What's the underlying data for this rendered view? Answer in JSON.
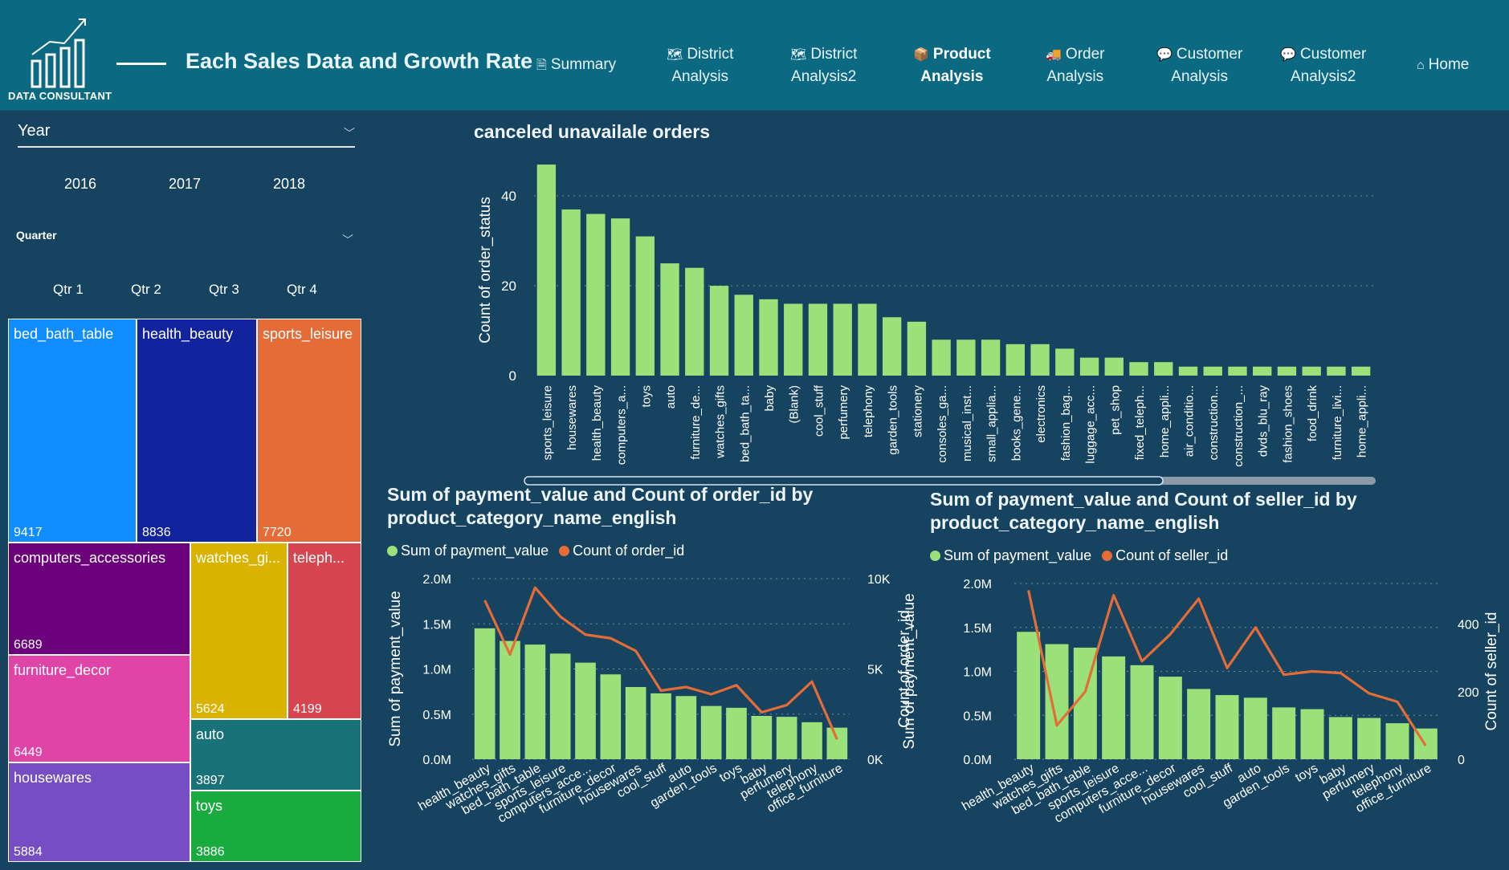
{
  "header": {
    "logo_label": "DATA CONSULTANT",
    "title": "Each Sales Data and Growth Rate",
    "nav": [
      {
        "line1": "Summary",
        "line2": "",
        "icon": "document-icon",
        "active": false
      },
      {
        "line1": "District",
        "line2": "Analysis",
        "icon": "map-icon",
        "active": false
      },
      {
        "line1": "District",
        "line2": "Analysis2",
        "icon": "map-icon",
        "active": false
      },
      {
        "line1": "Product",
        "line2": "Analysis",
        "icon": "box-icon",
        "active": true
      },
      {
        "line1": "Order",
        "line2": "Analysis",
        "icon": "truck-icon",
        "active": false
      },
      {
        "line1": "Customer",
        "line2": "Analysis",
        "icon": "chat-icon",
        "active": false
      },
      {
        "line1": "Customer",
        "line2": "Analysis2",
        "icon": "chat-icon",
        "active": false
      },
      {
        "line1": "Home",
        "line2": "",
        "icon": "home-icon",
        "active": false
      }
    ]
  },
  "slicers": {
    "year": {
      "label": "Year",
      "options": [
        "2016",
        "2017",
        "2018"
      ]
    },
    "quarter": {
      "label": "Quarter",
      "options": [
        "Qtr 1",
        "Qtr 2",
        "Qtr 3",
        "Qtr 4"
      ]
    }
  },
  "treemap": {
    "tiles": [
      {
        "label": "bed_bath_table",
        "value": 9417,
        "color": "#118dff"
      },
      {
        "label": "health_beauty",
        "value": 8836,
        "color": "#12239e"
      },
      {
        "label": "sports_leisure",
        "value": 7720,
        "color": "#e66c37"
      },
      {
        "label": "computers_accessories",
        "value": 6689,
        "color": "#6b007b"
      },
      {
        "label": "watches_gi...",
        "value": 5624,
        "color": "#d9b300"
      },
      {
        "label": "teleph...",
        "value": 4199,
        "color": "#d64550"
      },
      {
        "label": "furniture_decor",
        "value": 6449,
        "color": "#e044a7"
      },
      {
        "label": "auto",
        "value": 3897,
        "color": "#197278"
      },
      {
        "label": "housewares",
        "value": 5884,
        "color": "#744ec2"
      },
      {
        "label": "toys",
        "value": 3886,
        "color": "#1aab40"
      }
    ]
  },
  "chart_data": [
    {
      "type": "bar",
      "title": "canceled unavailale orders",
      "ylabel": "Count of order_status",
      "xlabel": "",
      "ylim": [
        0,
        47
      ],
      "yticks": [
        "0",
        "20",
        "40"
      ],
      "color": "#9ae17a",
      "categories": [
        "sports_leisure",
        "housewares",
        "health_beauty",
        "computers_a...",
        "toys",
        "auto",
        "furniture_de...",
        "watches_gifts",
        "bed_bath_ta...",
        "baby",
        "(Blank)",
        "cool_stuff",
        "perfumery",
        "telephony",
        "garden_tools",
        "stationery",
        "consoles_ga...",
        "musical_inst...",
        "small_applia...",
        "books_gene...",
        "electronics",
        "fashion_bag...",
        "luggage_acc...",
        "pet_shop",
        "fixed_teleph...",
        "home_appli...",
        "air_conditio...",
        "construction...",
        "construction_...",
        "dvds_blu_ray",
        "fashion_shoes",
        "food_drink",
        "furniture_livi...",
        "home_appli..."
      ],
      "values": [
        47,
        37,
        36,
        35,
        31,
        25,
        24,
        20,
        18,
        17,
        16,
        16,
        16,
        16,
        13,
        12,
        8,
        8,
        8,
        7,
        7,
        6,
        4,
        4,
        3,
        3,
        2,
        2,
        2,
        2,
        2,
        2,
        2,
        2
      ]
    },
    {
      "type": "bar",
      "title": "Sum of payment_value and Count of order_id by product_category_name_english",
      "ylabel": "Sum of payment_value",
      "y2label": "Count of order_id",
      "legend": [
        "Sum of payment_value",
        "Count of order_id"
      ],
      "legend_colors": [
        "#9ae17a",
        "#e66c37"
      ],
      "yticks": [
        "0.0M",
        "0.5M",
        "1.0M",
        "1.5M",
        "2.0M"
      ],
      "y2ticks": [
        "0K",
        "5K",
        "10K"
      ],
      "ylim": [
        0,
        2000000
      ],
      "y2lim": [
        0,
        10000
      ],
      "categories": [
        "health_beauty",
        "watches_gifts",
        "bed_bath_table",
        "sports_leisure",
        "computers_acce...",
        "furniture_decor",
        "housewares",
        "cool_stuff",
        "auto",
        "garden_tools",
        "toys",
        "baby",
        "perfumery",
        "telephony",
        "office_furniture"
      ],
      "series": [
        {
          "name": "Sum of payment_value",
          "type": "bar",
          "values": [
            1450000,
            1310000,
            1270000,
            1170000,
            1070000,
            940000,
            800000,
            730000,
            700000,
            590000,
            570000,
            480000,
            470000,
            410000,
            350000
          ]
        },
        {
          "name": "Count of order_id",
          "type": "line",
          "values": [
            8800,
            5800,
            9500,
            7900,
            6900,
            6700,
            6000,
            3800,
            4000,
            3600,
            4100,
            2600,
            3000,
            4300,
            1100
          ]
        }
      ]
    },
    {
      "type": "bar",
      "title": "Sum of payment_value and Count of seller_id by product_category_name_english",
      "ylabel": "Sum of payment_value",
      "y2label": "Count of seller_id",
      "legend": [
        "Sum of payment_value",
        "Count of seller_id"
      ],
      "legend_colors": [
        "#9ae17a",
        "#e66c37"
      ],
      "yticks": [
        "0.0M",
        "0.5M",
        "1.0M",
        "1.5M",
        "2.0M"
      ],
      "y2ticks": [
        "0",
        "200",
        "400"
      ],
      "ylim": [
        0,
        2000000
      ],
      "y2lim": [
        0,
        520
      ],
      "categories": [
        "health_beauty",
        "watches_gifts",
        "bed_bath_table",
        "sports_leisure",
        "computers_acce...",
        "furniture_decor",
        "housewares",
        "cool_stuff",
        "auto",
        "garden_tools",
        "toys",
        "baby",
        "perfumery",
        "telephony",
        "office_furniture"
      ],
      "series": [
        {
          "name": "Sum of payment_value",
          "type": "bar",
          "values": [
            1450000,
            1310000,
            1270000,
            1170000,
            1070000,
            940000,
            800000,
            730000,
            700000,
            590000,
            570000,
            480000,
            470000,
            410000,
            350000
          ]
        },
        {
          "name": "Count of seller_id",
          "type": "line",
          "values": [
            500,
            100,
            200,
            485,
            290,
            370,
            475,
            270,
            390,
            250,
            260,
            255,
            195,
            170,
            40
          ]
        }
      ]
    }
  ]
}
